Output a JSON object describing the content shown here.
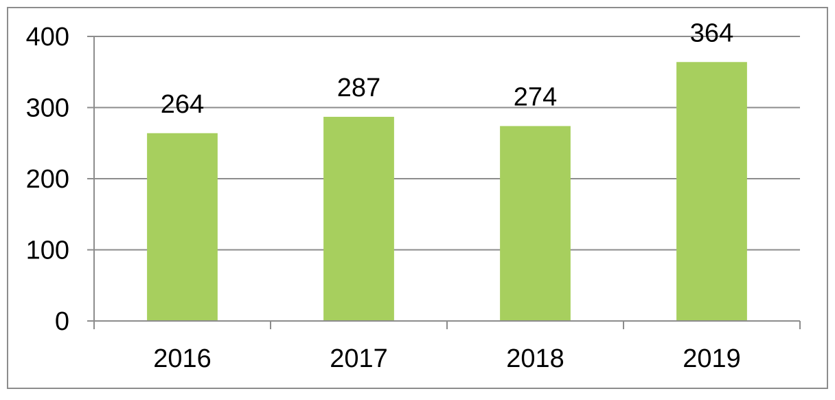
{
  "chart_data": {
    "type": "bar",
    "categories": [
      "2016",
      "2017",
      "2018",
      "2019"
    ],
    "values": [
      264,
      287,
      274,
      364
    ],
    "data_labels": [
      "264",
      "287",
      "274",
      "364"
    ],
    "y_ticks": [
      "0",
      "100",
      "200",
      "300",
      "400"
    ],
    "y_tick_values": [
      0,
      100,
      200,
      300,
      400
    ],
    "title": "",
    "xlabel": "",
    "ylabel": "",
    "ylim": [
      0,
      400
    ],
    "grid": true,
    "legend": "none",
    "bar_color": "#a7cf5e",
    "grid_color": "#8c8c8c"
  }
}
